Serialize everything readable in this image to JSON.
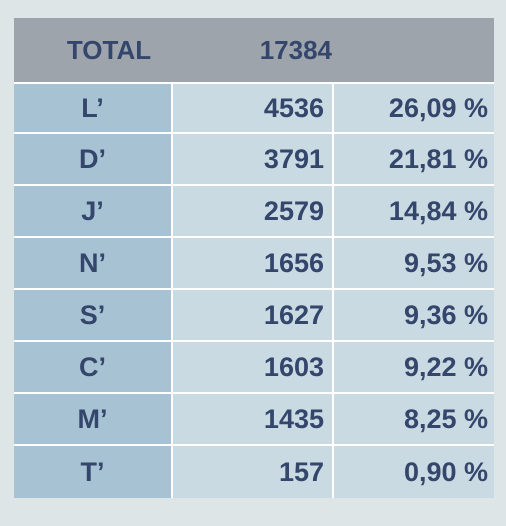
{
  "header": {
    "label": "TOTAL",
    "total": "17384"
  },
  "rows": [
    {
      "letter": "L’",
      "count": "4536",
      "percent": "26,09 %"
    },
    {
      "letter": "D’",
      "count": "3791",
      "percent": "21,81 %"
    },
    {
      "letter": "J’",
      "count": "2579",
      "percent": "14,84 %"
    },
    {
      "letter": "N’",
      "count": "1656",
      "percent": "9,53 %"
    },
    {
      "letter": "S’",
      "count": "1627",
      "percent": "9,36 %"
    },
    {
      "letter": "C’",
      "count": "1603",
      "percent": "9,22 %"
    },
    {
      "letter": "M’",
      "count": "1435",
      "percent": "8,25 %"
    },
    {
      "letter": "T’",
      "count": "157",
      "percent": "0,90 %"
    }
  ],
  "colors": {
    "header_bg": "#9ea4ab",
    "letter_bg": "#a7c2d2",
    "cell_bg": "#c9dae3",
    "text": "#34466b",
    "page_bg": "#dde5e6"
  }
}
